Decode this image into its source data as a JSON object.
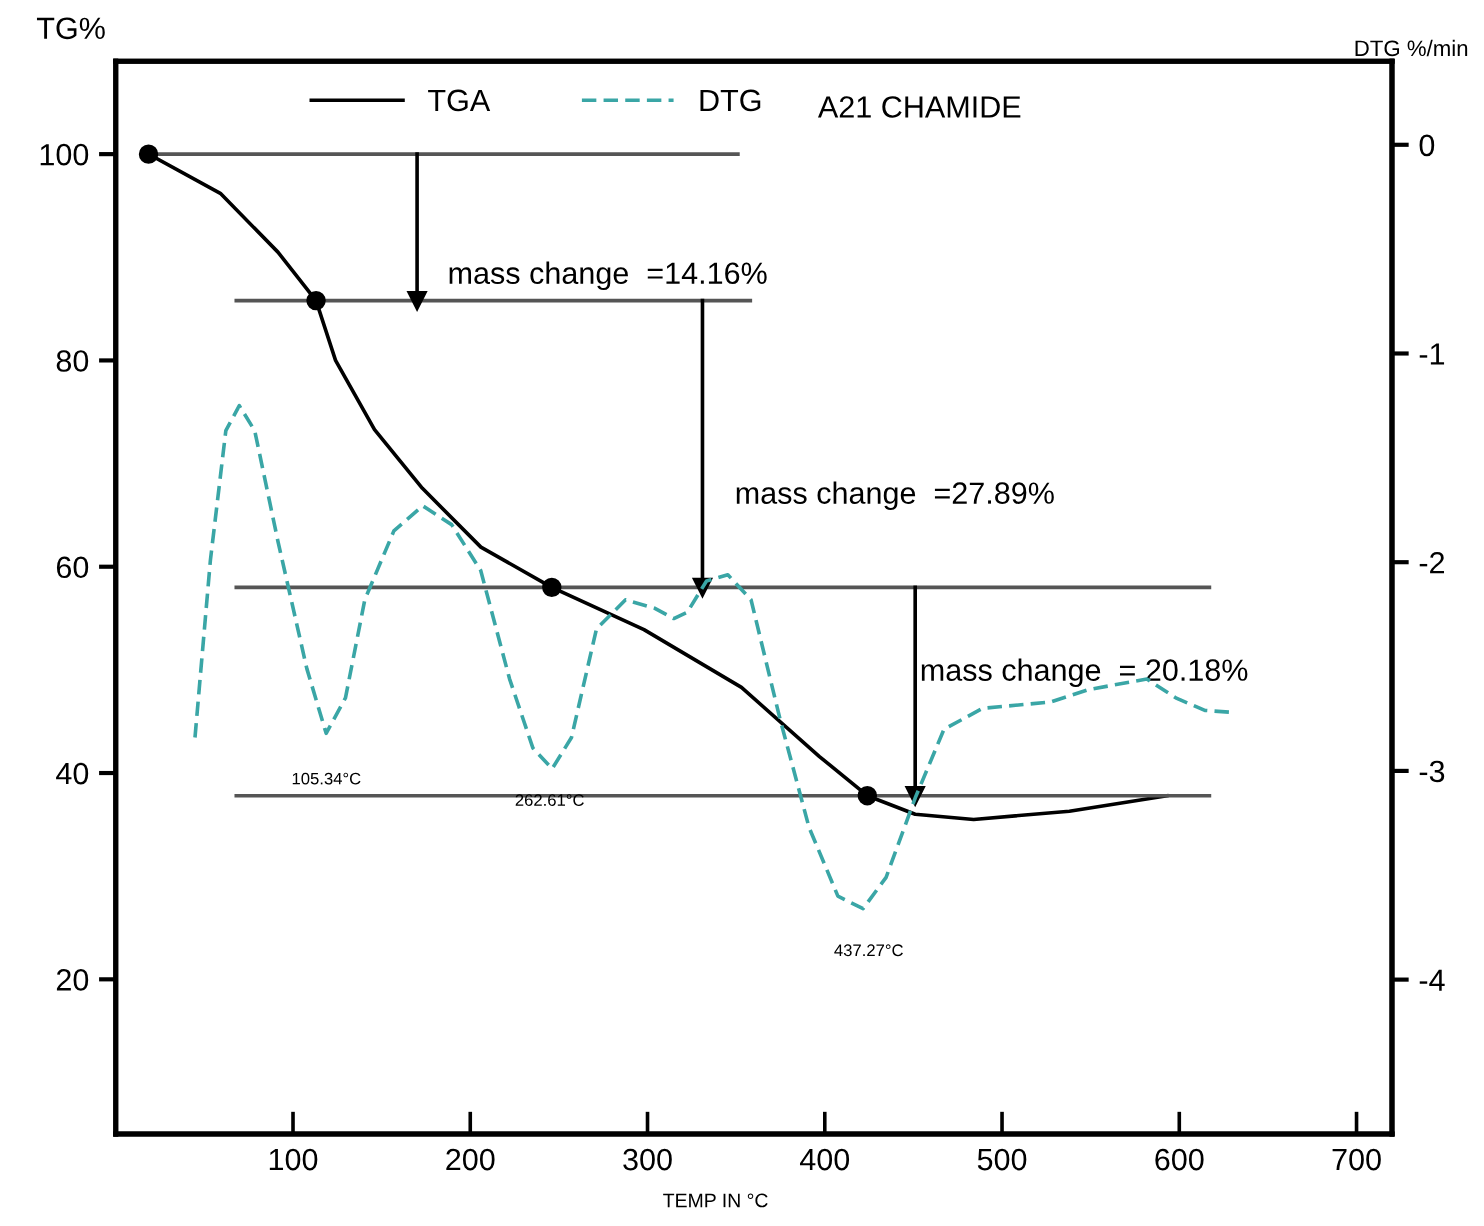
{
  "chart_data": {
    "type": "line",
    "title": "A21 CHAMIDE",
    "xlabel": "TEMP IN °C",
    "ylabel": "TG%",
    "y2label": "DTG %/min",
    "xlim": [
      0,
      720
    ],
    "xticks": [
      100,
      200,
      300,
      400,
      500,
      600,
      700
    ],
    "ylim": [
      5,
      109
    ],
    "yticks": [
      20,
      40,
      60,
      80,
      100
    ],
    "y2lim": [
      -4.74,
      0.4
    ],
    "y2ticks": [
      -4,
      -3,
      -2,
      -1,
      0
    ],
    "legend": "top",
    "grid": false,
    "line_style": "solid",
    "marker": "none",
    "series": [
      {
        "name": "TGA",
        "color": "#000000",
        "line_style": "solid",
        "x": [
          18.5,
          59,
          91.5,
          113,
          124,
          146,
          173,
          206,
          246,
          298,
          353,
          397,
          424,
          451,
          484,
          538,
          593
        ],
        "values": [
          100,
          96.2,
          90.5,
          85.8,
          80.0,
          73.3,
          67.6,
          61.9,
          58.0,
          53.9,
          48.3,
          41.6,
          37.8,
          36.0,
          35.5,
          36.3,
          37.8
        ]
      },
      {
        "name": "DTG",
        "type": "line",
        "axis": "y2",
        "color": "#3aa6a6",
        "line_style": "dashed",
        "x": [
          44.7,
          53.4,
          62.1,
          69.7,
          78.4,
          91.5,
          107.8,
          118.7,
          129.6,
          140.5,
          156.9,
          173.2,
          189.5,
          205.9,
          222.2,
          235.3,
          246.2,
          257.1,
          271.2,
          287.6,
          303.9,
          314.8,
          322.4,
          333.3,
          345.3,
          358.4,
          374.7,
          391.1,
          407.4,
          421.6,
          434.6,
          451.0,
          467.3,
          489.1,
          527.2,
          549.0,
          581.7,
          598.0,
          614.4,
          630.7
        ],
        "values": [
          -2.84,
          -1.99,
          -1.37,
          -1.25,
          -1.37,
          -1.9,
          -2.51,
          -2.82,
          -2.65,
          -2.18,
          -1.85,
          -1.73,
          -1.82,
          -2.04,
          -2.56,
          -2.89,
          -2.99,
          -2.84,
          -2.32,
          -2.18,
          -2.22,
          -2.27,
          -2.24,
          -2.09,
          -2.06,
          -2.18,
          -2.75,
          -3.27,
          -3.6,
          -3.66,
          -3.51,
          -3.13,
          -2.8,
          -2.7,
          -2.67,
          -2.61,
          -2.56,
          -2.65,
          -2.71,
          -2.72
        ]
      },
      {
        "type": "scatter",
        "color": "#000000",
        "marker": "circle",
        "x": [
          18.5,
          113,
          246,
          424
        ],
        "values": [
          100,
          85.8,
          58.0,
          37.8
        ]
      },
      {
        "type": "line",
        "color": "#555555",
        "x": [
          18.5,
          351
        ],
        "values": [
          100,
          100
        ]
      },
      {
        "type": "line",
        "color": "#555555",
        "x": [
          68,
          358
        ],
        "values": [
          85.8,
          85.8
        ]
      },
      {
        "type": "line",
        "color": "#555555",
        "x": [
          68,
          617
        ],
        "values": [
          58.0,
          58.0
        ]
      },
      {
        "type": "line",
        "color": "#555555",
        "x": [
          68,
          617
        ],
        "values": [
          37.8,
          37.8
        ]
      },
      {
        "type": "line",
        "color": "#000000",
        "marker": "triangle",
        "x": [
          170,
          170
        ],
        "values": [
          100,
          85.8
        ]
      },
      {
        "type": "line",
        "color": "#000000",
        "marker": "triangle",
        "x": [
          331,
          331
        ],
        "values": [
          85.8,
          58.0
        ]
      },
      {
        "type": "line",
        "color": "#000000",
        "marker": "triangle",
        "x": [
          451,
          451
        ],
        "values": [
          58.0,
          37.8
        ]
      }
    ],
    "annotations": [
      "mass change  =14.16%",
      "mass change  =27.89%",
      "mass change  = 20.18%",
      "105.34°C",
      "262.61°C",
      "437.27°C"
    ]
  }
}
